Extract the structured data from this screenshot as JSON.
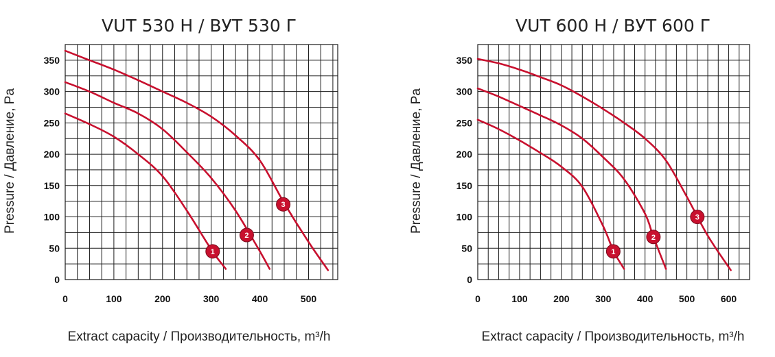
{
  "chart_data": [
    {
      "type": "line",
      "title": "VUT 530 H / ВУТ 530 Г",
      "xlabel": "Extract capacity / Производительность, m³/h",
      "ylabel": "Pressure / Давление, Pa",
      "xlim": [
        0,
        560
      ],
      "ylim": [
        0,
        375
      ],
      "xticks": [
        0,
        100,
        200,
        300,
        400,
        500
      ],
      "yticks": [
        0,
        50,
        100,
        150,
        200,
        250,
        300,
        350
      ],
      "grid": true,
      "series": [
        {
          "label": "1",
          "label_at": [
            303,
            45
          ],
          "x": [
            0,
            50,
            100,
            150,
            200,
            250,
            300,
            330
          ],
          "y": [
            265,
            248,
            228,
            200,
            165,
            110,
            48,
            17
          ]
        },
        {
          "label": "2",
          "label_at": [
            373,
            71
          ],
          "x": [
            0,
            50,
            100,
            150,
            200,
            250,
            300,
            350,
            400,
            420
          ],
          "y": [
            315,
            300,
            282,
            265,
            240,
            203,
            162,
            110,
            45,
            17
          ]
        },
        {
          "label": "3",
          "label_at": [
            448,
            120
          ],
          "x": [
            0,
            50,
            100,
            150,
            200,
            250,
            300,
            350,
            400,
            450,
            500,
            540
          ],
          "y": [
            365,
            350,
            335,
            318,
            300,
            282,
            260,
            230,
            190,
            122,
            60,
            15
          ]
        }
      ]
    },
    {
      "type": "line",
      "title": "VUT 600 H / ВУТ 600 Г",
      "xlabel": "Extract capacity / Производительность, m³/h",
      "ylabel": "Pressure / Давление, Pa",
      "xlim": [
        0,
        650
      ],
      "ylim": [
        0,
        375
      ],
      "xticks": [
        0,
        100,
        200,
        300,
        400,
        500,
        600
      ],
      "yticks": [
        0,
        50,
        100,
        150,
        200,
        250,
        300,
        350
      ],
      "grid": true,
      "series": [
        {
          "label": "1",
          "label_at": [
            324,
            45
          ],
          "x": [
            0,
            50,
            100,
            150,
            200,
            250,
            300,
            325,
            350
          ],
          "y": [
            255,
            240,
            222,
            202,
            180,
            148,
            85,
            45,
            17
          ]
        },
        {
          "label": "2",
          "label_at": [
            420,
            68
          ],
          "x": [
            0,
            50,
            100,
            150,
            200,
            250,
            300,
            350,
            400,
            420,
            450
          ],
          "y": [
            305,
            292,
            277,
            262,
            246,
            225,
            195,
            160,
            105,
            68,
            17
          ]
        },
        {
          "label": "3",
          "label_at": [
            525,
            100
          ],
          "x": [
            0,
            50,
            100,
            150,
            200,
            250,
            300,
            350,
            400,
            450,
            500,
            550,
            605
          ],
          "y": [
            352,
            345,
            335,
            323,
            310,
            292,
            272,
            250,
            225,
            190,
            132,
            70,
            15
          ]
        }
      ]
    }
  ]
}
